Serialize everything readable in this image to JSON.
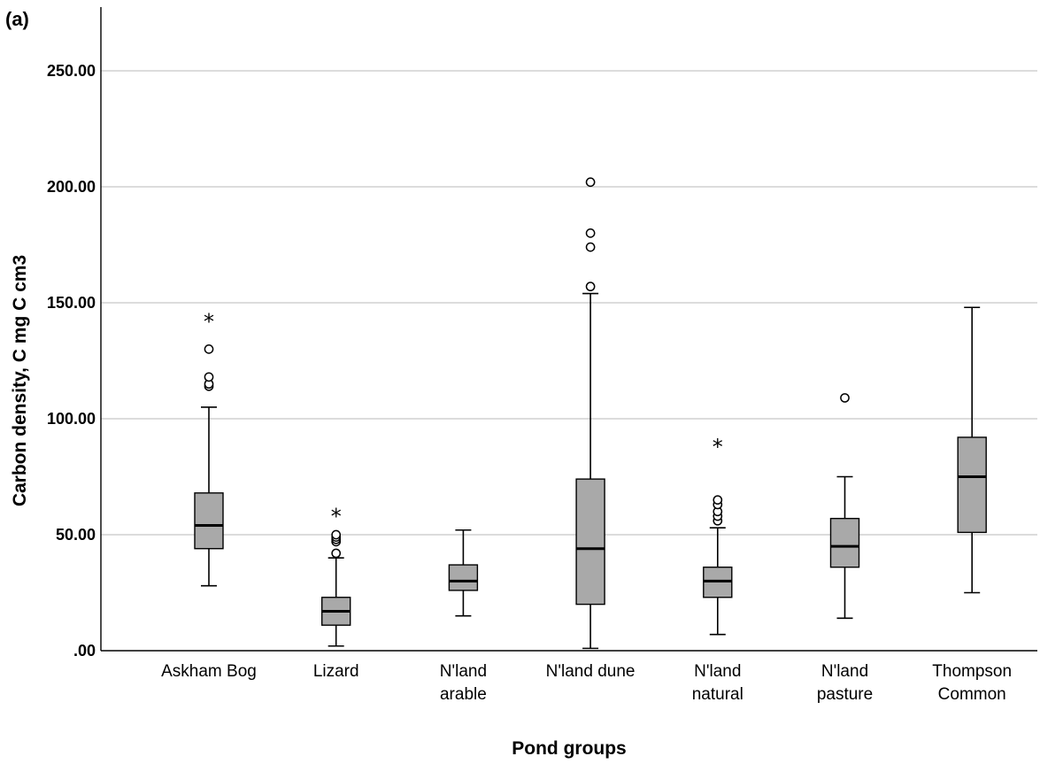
{
  "panel_label": "(a)",
  "chart_data": {
    "type": "boxplot",
    "xlabel": "Pond groups",
    "ylabel": "Carbon density, C  mg C cm3",
    "ylim": [
      0,
      275
    ],
    "yticks": [
      0,
      50,
      100,
      150,
      200,
      250
    ],
    "ytick_labels": [
      ".00",
      "50.00",
      "100.00",
      "150.00",
      "200.00",
      "250.00"
    ],
    "grid": "horizontal",
    "box_color": "#a9a9a9",
    "categories": [
      {
        "label": [
          "Askham Bog"
        ],
        "min": 28,
        "q1": 44,
        "median": 54,
        "q3": 68,
        "max": 105,
        "outliers": [
          114,
          115,
          118,
          130
        ],
        "extremes": [
          143
        ]
      },
      {
        "label": [
          "Lizard"
        ],
        "min": 2,
        "q1": 11,
        "median": 17,
        "q3": 23,
        "max": 40,
        "outliers": [
          42,
          47,
          48,
          49,
          50
        ],
        "extremes": [
          59
        ]
      },
      {
        "label": [
          "N'land",
          "arable"
        ],
        "min": 15,
        "q1": 26,
        "median": 30,
        "q3": 37,
        "max": 52,
        "outliers": [],
        "extremes": []
      },
      {
        "label": [
          "N'land dune"
        ],
        "min": 1,
        "q1": 20,
        "median": 44,
        "q3": 74,
        "max": 154,
        "outliers": [
          157,
          174,
          180,
          202
        ],
        "extremes": []
      },
      {
        "label": [
          "N'land",
          "natural"
        ],
        "min": 7,
        "q1": 23,
        "median": 30,
        "q3": 36,
        "max": 53,
        "outliers": [
          56,
          58,
          60,
          63,
          65
        ],
        "extremes": [
          89
        ]
      },
      {
        "label": [
          "N'land",
          "pasture"
        ],
        "min": 14,
        "q1": 36,
        "median": 45,
        "q3": 57,
        "max": 75,
        "outliers": [
          109
        ],
        "extremes": []
      },
      {
        "label": [
          "Thompson",
          "Common"
        ],
        "min": 25,
        "q1": 51,
        "median": 75,
        "q3": 92,
        "max": 148,
        "outliers": [],
        "extremes": []
      }
    ]
  }
}
